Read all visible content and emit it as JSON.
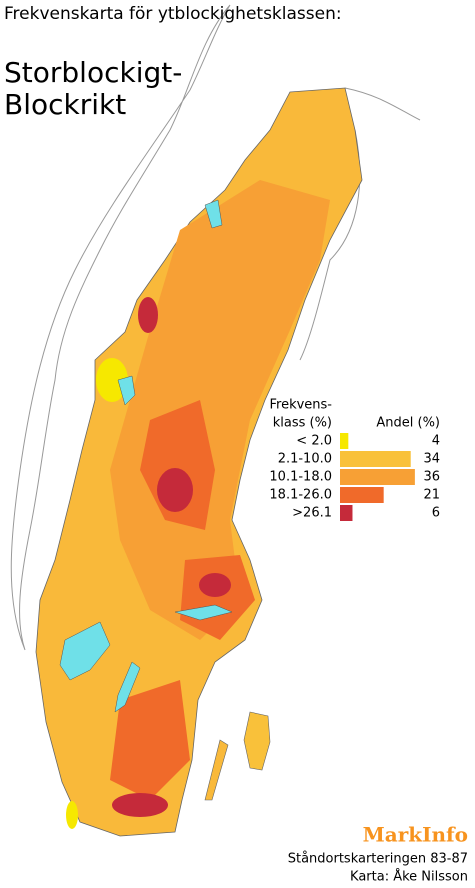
{
  "title": "Frekvenskarta för ytblockighetsklassen:",
  "subtitle": [
    "Storblockigt-",
    "Blockrikt"
  ],
  "legend": {
    "class_header": [
      "Frekvens-",
      "klass (%)"
    ],
    "share_header": "Andel (%)",
    "classes": [
      {
        "label": "< 2.0",
        "color": "#f6e800",
        "share": 4
      },
      {
        "label": "2.1-10.0",
        "color": "#f9c13a",
        "share": 34
      },
      {
        "label": "10.1-18.0",
        "color": "#f7a035",
        "share": 36
      },
      {
        "label": "18.1-26.0",
        "color": "#f06a2a",
        "share": 21
      },
      {
        "label": ">26.1",
        "color": "#c52a3a",
        "share": 6
      }
    ]
  },
  "logo": "MarkInfo",
  "credits": [
    "Ståndortskarteringen 83-87",
    "Karta: Åke Nilsson"
  ]
}
